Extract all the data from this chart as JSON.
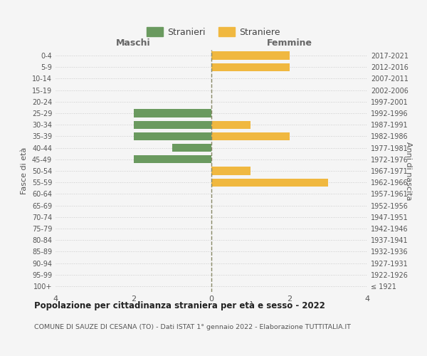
{
  "age_groups": [
    "100+",
    "95-99",
    "90-94",
    "85-89",
    "80-84",
    "75-79",
    "70-74",
    "65-69",
    "60-64",
    "55-59",
    "50-54",
    "45-49",
    "40-44",
    "35-39",
    "30-34",
    "25-29",
    "20-24",
    "15-19",
    "10-14",
    "5-9",
    "0-4"
  ],
  "birth_years": [
    "≤ 1921",
    "1922-1926",
    "1927-1931",
    "1932-1936",
    "1937-1941",
    "1942-1946",
    "1947-1951",
    "1952-1956",
    "1957-1961",
    "1962-1966",
    "1967-1971",
    "1972-1976",
    "1977-1981",
    "1982-1986",
    "1987-1991",
    "1992-1996",
    "1997-2001",
    "2002-2006",
    "2007-2011",
    "2012-2016",
    "2017-2021"
  ],
  "maschi": [
    0,
    0,
    0,
    0,
    0,
    0,
    0,
    0,
    0,
    0,
    0,
    2,
    1,
    2,
    2,
    2,
    0,
    0,
    0,
    0,
    0
  ],
  "femmine": [
    0,
    0,
    0,
    0,
    0,
    0,
    0,
    0,
    0,
    3,
    1,
    0,
    0,
    2,
    1,
    0,
    0,
    0,
    0,
    2,
    2
  ],
  "color_maschi": "#6a9a5f",
  "color_femmine": "#f0b840",
  "background_color": "#f5f5f5",
  "grid_color": "#cccccc",
  "center_line_color": "#888866",
  "title_main": "Popolazione per cittadinanza straniera per età e sesso - 2022",
  "title_sub": "COMUNE DI SAUZE DI CESANA (TO) - Dati ISTAT 1° gennaio 2022 - Elaborazione TUTTITALIA.IT",
  "legend_maschi": "Stranieri",
  "legend_femmine": "Straniere",
  "xlabel_left": "Maschi",
  "xlabel_right": "Femmine",
  "ylabel_left": "Fasce di età",
  "ylabel_right": "Anni di nascita",
  "xlim": 4
}
